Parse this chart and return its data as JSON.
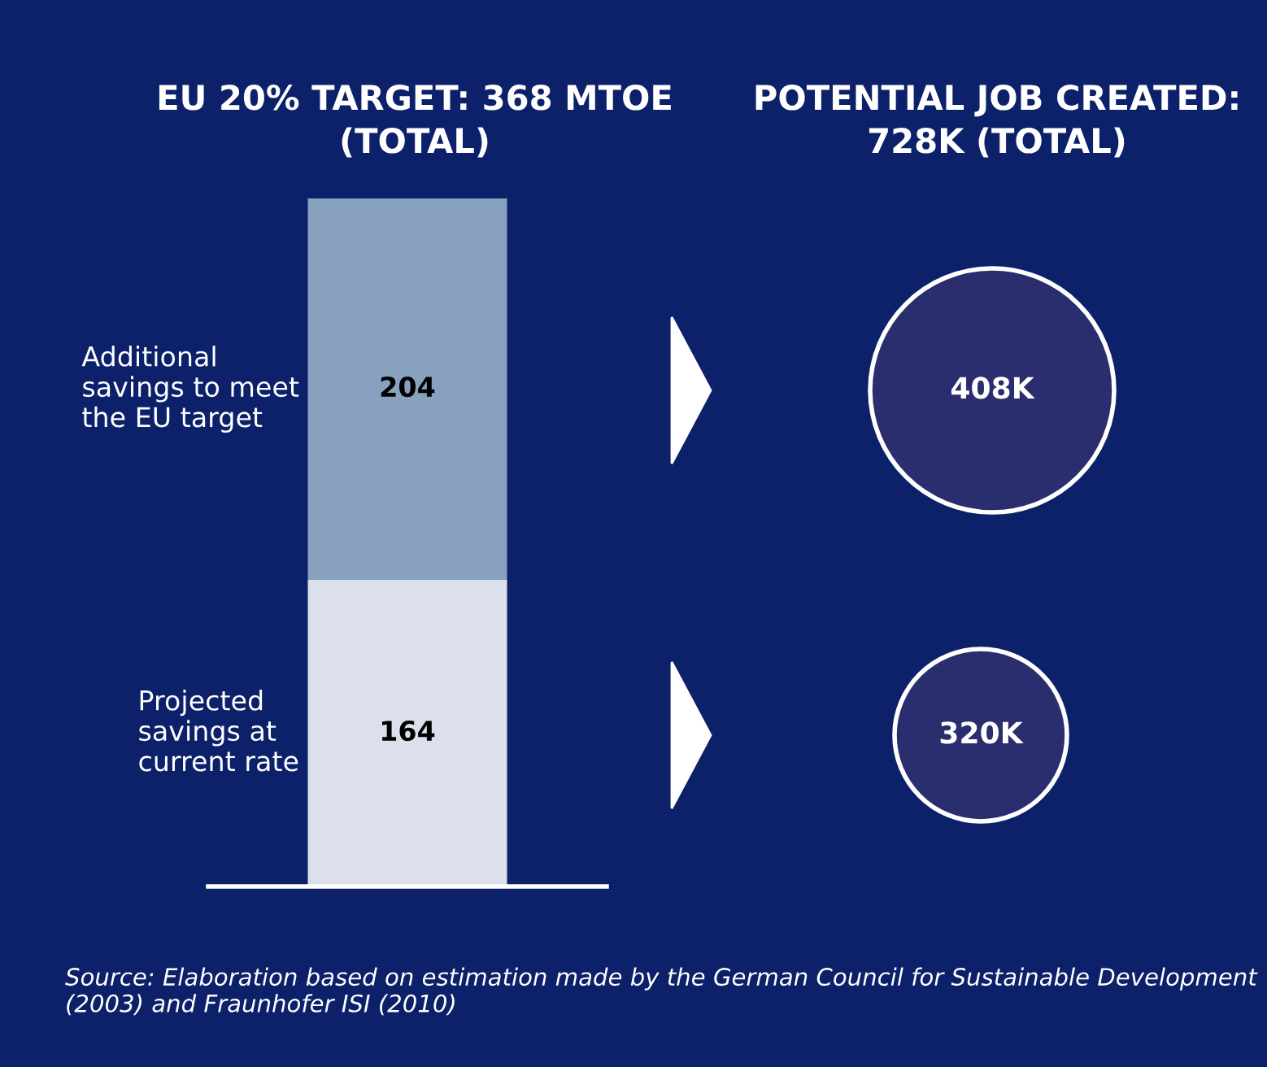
{
  "chart_data": [
    {
      "type": "bar",
      "title": "EU 20% TARGET: 368 MTOE\n(TOTAL)",
      "categories": [
        null
      ],
      "stacked": true,
      "data_labels": true,
      "series": [
        {
          "name": "Projected savings at current rate",
          "color": "#dbe0ec",
          "values": [
            164
          ]
        },
        {
          "name": "Additional savings to meet the EU target",
          "color": "#87a1bf",
          "values": [
            204
          ]
        }
      ],
      "ylim": [
        0,
        368
      ],
      "annotations": [
        "Source: Elaboration based on estimation made by the German Council for Sustainable Development (2003) and Fraunhofer ISI (2010)"
      ]
    },
    {
      "type": "other",
      "title": "POTENTIAL JOB CREATED:\n728K (TOTAL)",
      "annotations": [
        "408K",
        "320K"
      ]
    }
  ]
}
